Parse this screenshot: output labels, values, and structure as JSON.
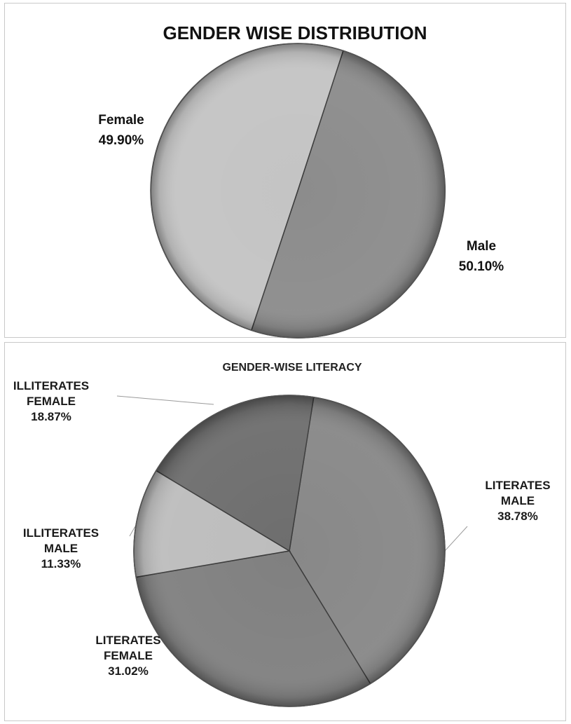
{
  "chart_data": [
    {
      "type": "pie",
      "title": "GENDER WISE DISTRIBUTION",
      "slices": [
        {
          "line1": "Male",
          "line2": "",
          "pct": "50.10%",
          "value": 50.1,
          "color": "#8c8c8c"
        },
        {
          "line1": "Female",
          "line2": "",
          "pct": "49.90%",
          "value": 49.9,
          "color": "#c4c4c4"
        }
      ]
    },
    {
      "type": "pie",
      "title": "GENDER-WISE LITERACY",
      "slices": [
        {
          "line1": "LITERATES",
          "line2": "MALE",
          "pct": "38.78%",
          "value": 38.78,
          "color": "#888888"
        },
        {
          "line1": "LITERATES",
          "line2": "FEMALE",
          "pct": "31.02%",
          "value": 31.02,
          "color": "#808080"
        },
        {
          "line1": "ILLITERATES",
          "line2": "MALE",
          "pct": "11.33%",
          "value": 11.33,
          "color": "#bdbdbd"
        },
        {
          "line1": "ILLITERATES",
          "line2": "FEMALE",
          "pct": "18.87%",
          "value": 18.87,
          "color": "#6e6e6e"
        }
      ]
    }
  ]
}
